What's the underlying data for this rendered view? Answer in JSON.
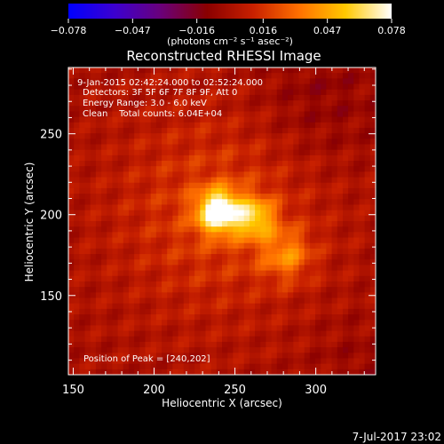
{
  "chart_data": {
    "type": "heatmap",
    "title": "Reconstructed RHESSI Image",
    "xlabel": "Heliocentric X (arcsec)",
    "ylabel": "Heliocentric Y (arcsec)",
    "xlim": [
      147,
      337
    ],
    "ylim": [
      101,
      291
    ],
    "xticks": [
      150,
      200,
      250,
      300
    ],
    "yticks": [
      150,
      200,
      250
    ],
    "info_lines": [
      "9-Jan-2015 02:42:24.000 to 02:52:24.000",
      "Detectors: 3F 5F 6F 7F 8F 9F, Att 0",
      "Energy Range: 3.0 - 6.0 keV",
      "Clean    Total counts: 6.04E+04"
    ],
    "peak_label": "Position of Peak = [240,202]",
    "peak": [
      240,
      202
    ],
    "colorbar": {
      "range": [
        -0.078,
        0.078
      ],
      "tick_labels": [
        "−0.078",
        "−0.047",
        "−0.016",
        "0.016",
        "0.047",
        "0.078"
      ],
      "tick_values": [
        -0.078,
        -0.047,
        -0.016,
        0.016,
        0.047,
        0.078
      ],
      "unit_label": "(photons cm⁻² s⁻¹ asec⁻²)",
      "palette": [
        "#0000ff",
        "#3c00d0",
        "#6a007a",
        "#8a0000",
        "#c82000",
        "#ff7000",
        "#ffc800",
        "#ffffff"
      ]
    },
    "footer_date": "7-Jul-2017 23:02"
  }
}
